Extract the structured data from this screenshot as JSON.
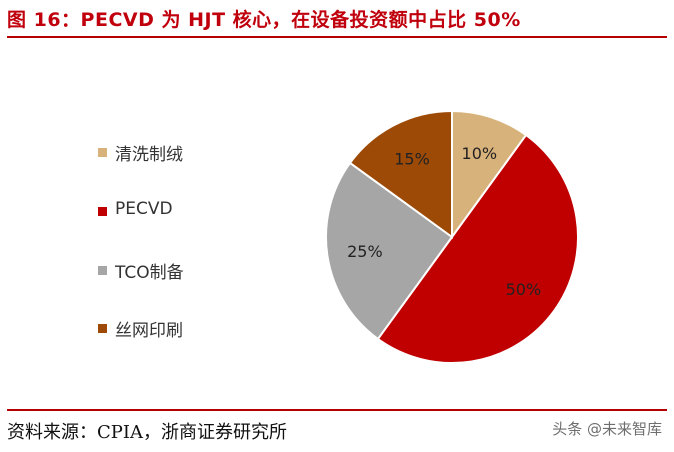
{
  "header": {
    "title": "图 16：PECVD 为 HJT 核心，在设备投资额中占比 50%"
  },
  "chart_data": {
    "type": "pie",
    "categories": [
      "清洗制绒",
      "PECVD",
      "TCO制备",
      "丝网印刷"
    ],
    "values": [
      10,
      50,
      25,
      15
    ],
    "value_labels": [
      "10%",
      "50%",
      "25%",
      "15%"
    ],
    "colors": [
      "#d8b27b",
      "#c00000",
      "#a6a6a6",
      "#9c4a06"
    ],
    "start_angle_deg": 0,
    "direction": "clockwise",
    "legend_position": "left"
  },
  "footer": {
    "source": "资料来源：CPIA，浙商证券研究所",
    "watermark": "头条 @未来智库"
  }
}
